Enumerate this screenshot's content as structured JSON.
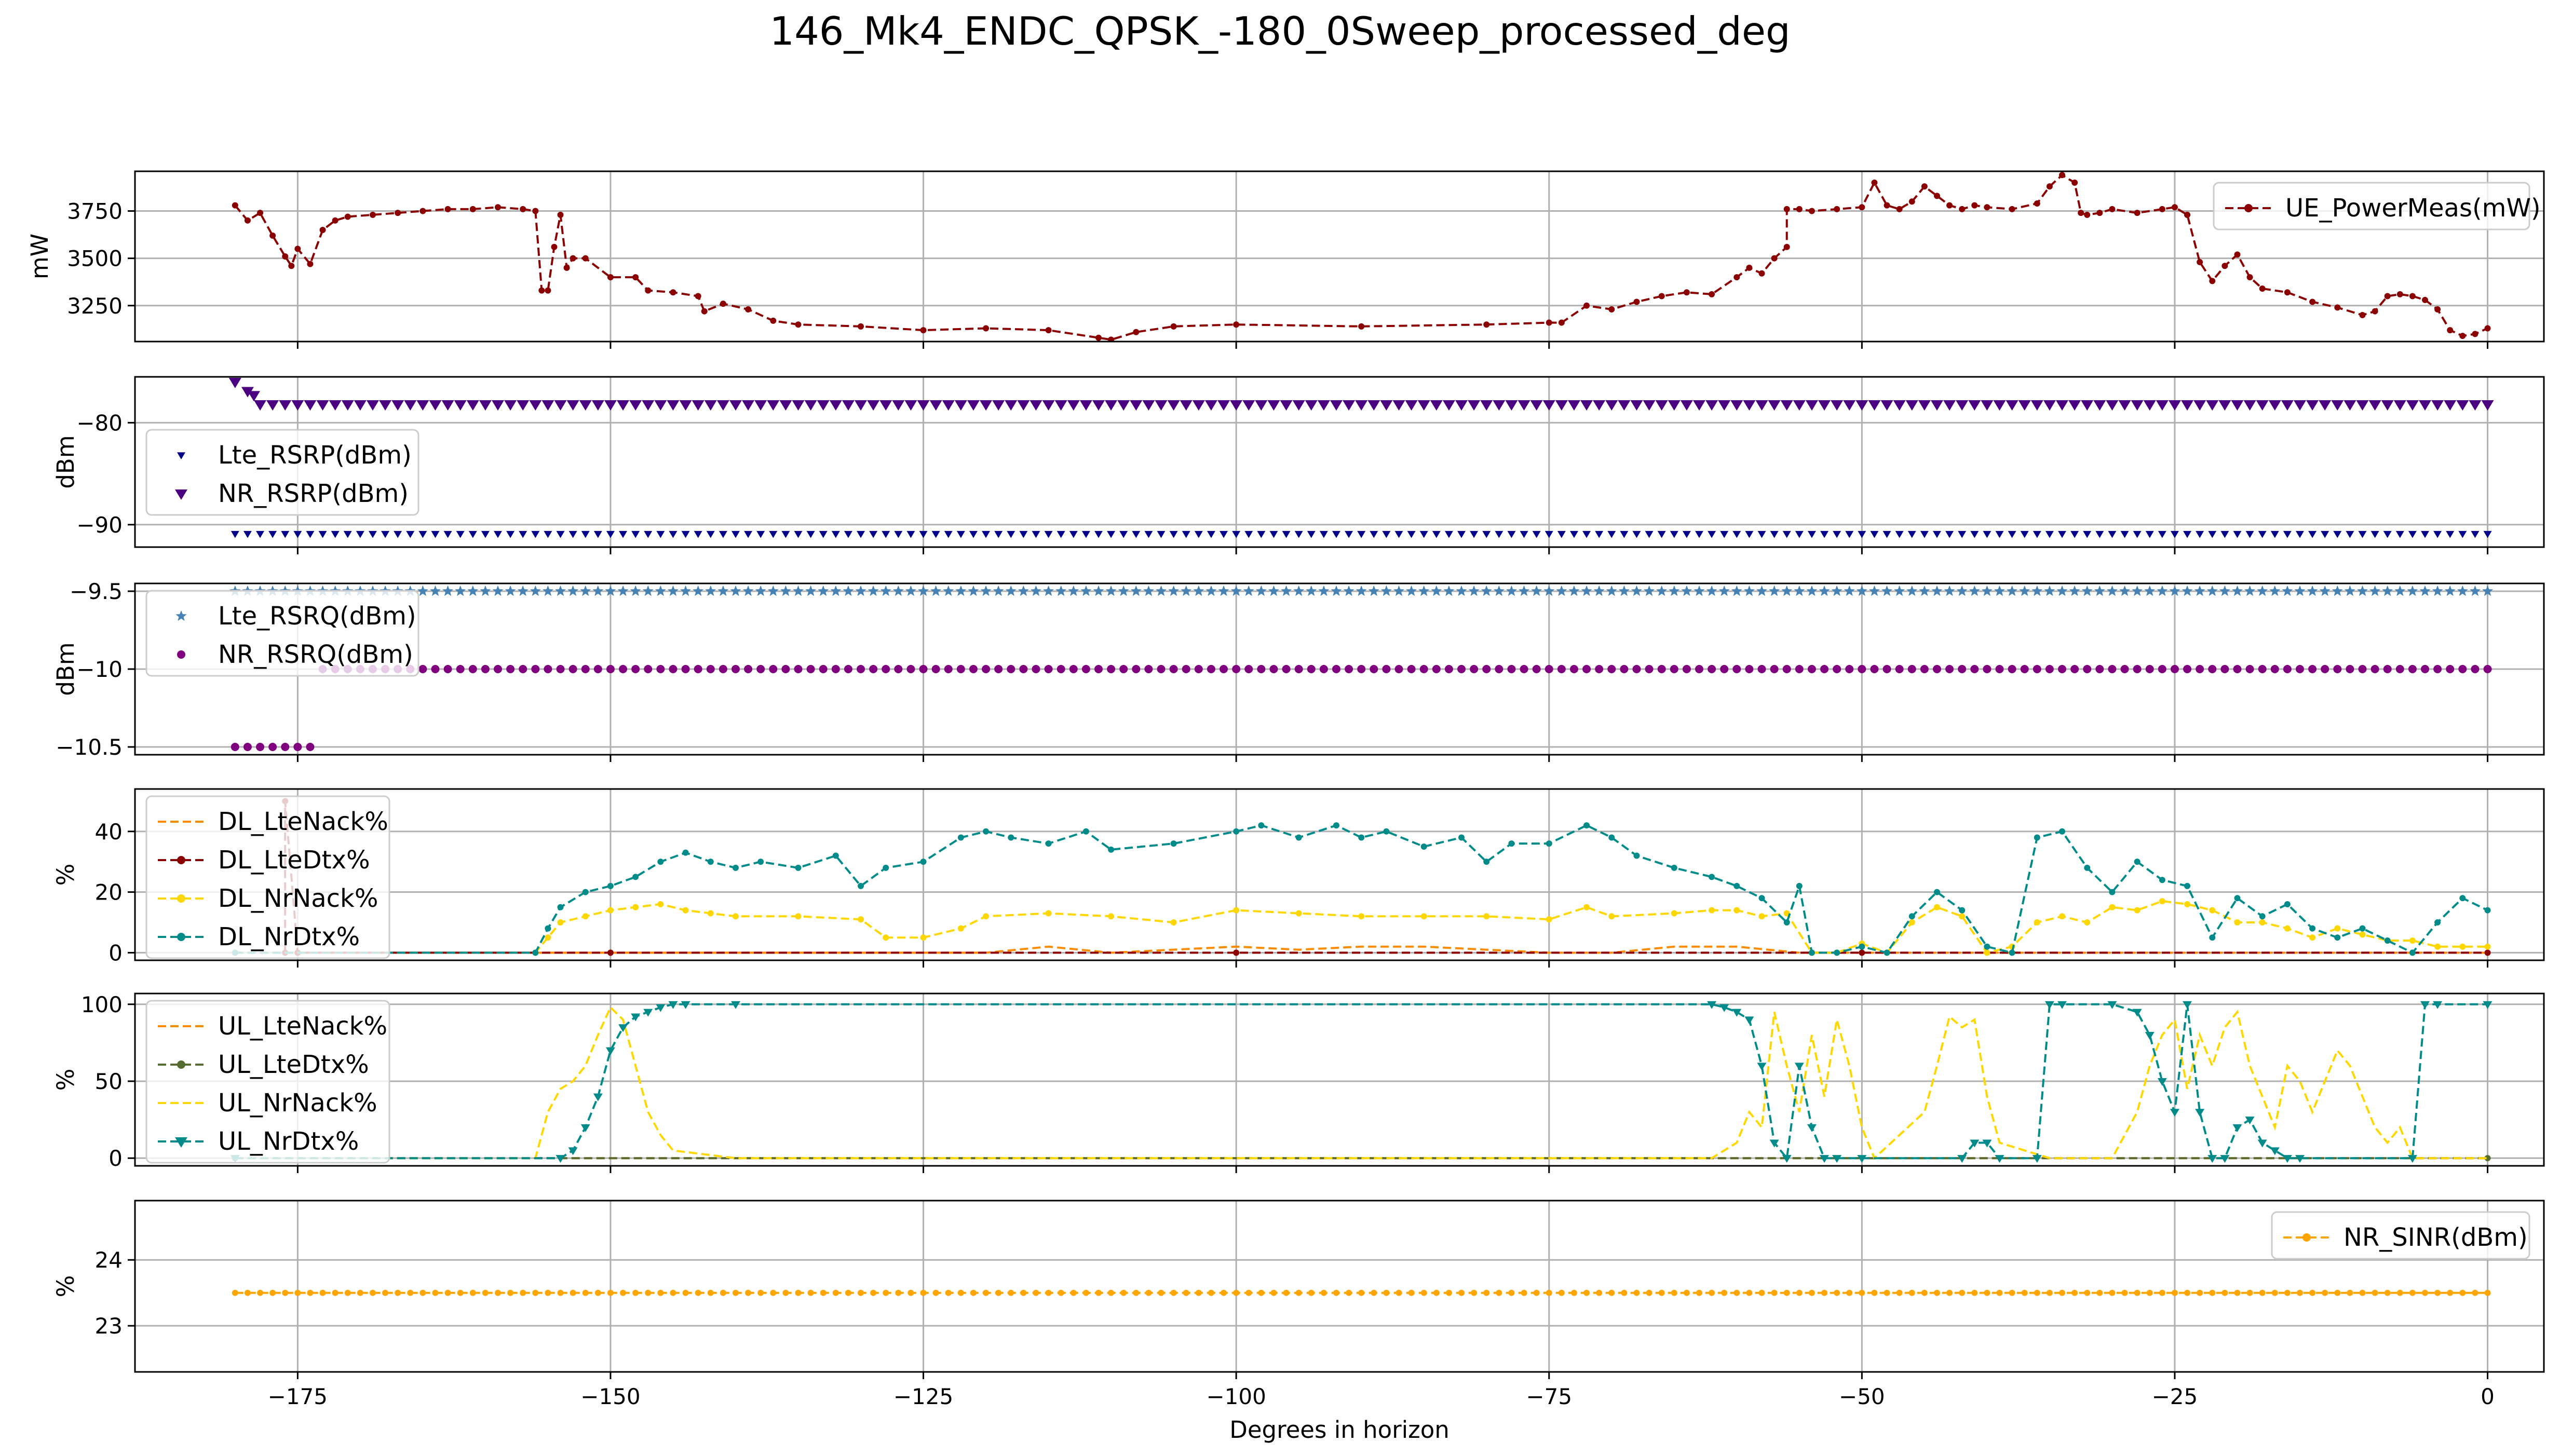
{
  "figure": {
    "title": "146_Mk4_ENDC_QPSK_-180_0Sweep_processed_deg",
    "xlabel": "Degrees in horizon",
    "xticks": [
      -175,
      -150,
      -125,
      -100,
      -75,
      -50,
      -25,
      0
    ],
    "xlim": [
      -188,
      4.5
    ]
  },
  "chart_data": [
    {
      "type": "line",
      "ylabel": "mW",
      "ylim": [
        3060,
        3960
      ],
      "yticks": [
        3250,
        3500,
        3750
      ],
      "legend_position": "top-right",
      "series": [
        {
          "name": "UE_PowerMeas(mW)",
          "color": "#8b0000",
          "dashed": true,
          "marker": "dot",
          "x": [
            -180,
            -179,
            -178,
            -177,
            -176,
            -175.5,
            -175,
            -174,
            -173,
            -172,
            -171,
            -169,
            -167,
            -165,
            -163,
            -161,
            -159,
            -157,
            -156,
            -155.5,
            -155,
            -154.5,
            -154,
            -153.5,
            -153,
            -152,
            -150,
            -148,
            -147,
            -145,
            -143,
            -142.5,
            -141,
            -139,
            -137,
            -135,
            -130,
            -125,
            -120,
            -115,
            -111,
            -110,
            -108,
            -105,
            -100,
            -90,
            -80,
            -75,
            -74,
            -72,
            -70,
            -68,
            -66,
            -64,
            -62,
            -60,
            -59,
            -58,
            -57,
            -56,
            -56,
            -55,
            -54,
            -52,
            -50,
            -49,
            -48,
            -47,
            -46,
            -45,
            -44,
            -43,
            -42,
            -41,
            -40,
            -38,
            -36,
            -35,
            -34,
            -33,
            -32.5,
            -32,
            -31,
            -30,
            -28,
            -26,
            -25,
            -24,
            -24,
            -23,
            -22,
            -21,
            -20,
            -19,
            -18,
            -16,
            -14,
            -12,
            -10,
            -9,
            -8,
            -7,
            -6,
            -5,
            -4,
            -3,
            -2,
            -1,
            0
          ],
          "y": [
            3780,
            3700,
            3740,
            3620,
            3510,
            3460,
            3550,
            3470,
            3650,
            3700,
            3720,
            3730,
            3740,
            3750,
            3760,
            3760,
            3770,
            3760,
            3750,
            3330,
            3330,
            3560,
            3730,
            3450,
            3500,
            3500,
            3400,
            3400,
            3330,
            3320,
            3300,
            3220,
            3260,
            3230,
            3170,
            3150,
            3140,
            3120,
            3130,
            3120,
            3080,
            3070,
            3110,
            3140,
            3150,
            3140,
            3150,
            3160,
            3160,
            3250,
            3230,
            3270,
            3300,
            3320,
            3310,
            3400,
            3450,
            3420,
            3500,
            3560,
            3760,
            3760,
            3750,
            3760,
            3770,
            3900,
            3780,
            3760,
            3800,
            3880,
            3830,
            3780,
            3760,
            3780,
            3770,
            3760,
            3790,
            3880,
            3940,
            3900,
            3740,
            3730,
            3740,
            3760,
            3740,
            3760,
            3770,
            3730,
            3730,
            3480,
            3380,
            3460,
            3520,
            3400,
            3340,
            3320,
            3270,
            3240,
            3200,
            3220,
            3300,
            3310,
            3300,
            3280,
            3230,
            3120,
            3090,
            3100,
            3130
          ]
        }
      ]
    },
    {
      "type": "scatter",
      "ylabel": "dBm",
      "ylim": [
        -92.2,
        -75.5
      ],
      "yticks": [
        -90,
        -80
      ],
      "legend_position": "center-left",
      "series": [
        {
          "name": "Lte_RSRP(dBm)",
          "color": "#00008b",
          "marker": "triangle-down-small",
          "x_range": [
            -180,
            0
          ],
          "step": 1,
          "value": -90.9
        },
        {
          "name": "NR_RSRP(dBm)",
          "color": "#4b0082",
          "marker": "triangle-down",
          "x_range": [
            -178,
            0
          ],
          "step": 1,
          "value": -78.2,
          "start_points": {
            "x": [
              -180,
              -179,
              -178.5
            ],
            "y": [
              -76,
              -76.9,
              -77.3
            ]
          }
        }
      ]
    },
    {
      "type": "scatter",
      "ylabel": "dBm",
      "ylim": [
        -10.55,
        -9.45
      ],
      "yticks": [
        -10.5,
        -10.0,
        -9.5
      ],
      "legend_position": "top-left",
      "series": [
        {
          "name": "Lte_RSRQ(dBm)",
          "color": "#4682b4",
          "marker": "star",
          "x_range": [
            -180,
            0
          ],
          "step": 1,
          "value": -9.5
        },
        {
          "name": "NR_RSRQ(dBm)",
          "color": "#800080",
          "marker": "dot",
          "segments": [
            {
              "x_range": [
                -180,
                -174
              ],
              "value": -10.5
            },
            {
              "x_range": [
                -173,
                0
              ],
              "value": -10.0
            }
          ]
        }
      ]
    },
    {
      "type": "line",
      "ylabel": "%",
      "ylim": [
        -2.5,
        54
      ],
      "yticks": [
        0,
        20,
        40
      ],
      "legend_position": "top-left",
      "series": [
        {
          "name": "DL_LteNack%",
          "color": "#ff8c00",
          "dashed": true,
          "x": [
            -180,
            -156,
            -120,
            -115,
            -110,
            -100,
            -95,
            -90,
            -85,
            -80,
            -75,
            -70,
            -65,
            -60,
            -55,
            -50,
            -40,
            -30,
            -20,
            -10,
            0
          ],
          "y": [
            0,
            0,
            0,
            2,
            0,
            2,
            1,
            2,
            2,
            1,
            0,
            0,
            2,
            2,
            0,
            0,
            0,
            0,
            0,
            0,
            0
          ]
        },
        {
          "name": "DL_LteDtx%",
          "color": "#8b0000",
          "dashed": true,
          "marker": "dot",
          "x": [
            -180,
            -176,
            -176,
            -175,
            -175,
            -150,
            -100,
            -50,
            0
          ],
          "y": [
            0,
            0,
            50,
            0,
            0,
            0,
            0,
            0,
            0
          ]
        },
        {
          "name": "DL_NrNack%",
          "color": "#ffd700",
          "dashed": true,
          "marker": "dot",
          "x": [
            -180,
            -156,
            -155,
            -154,
            -152,
            -150,
            -148,
            -146,
            -144,
            -142,
            -140,
            -135,
            -130,
            -128,
            -125,
            -122,
            -120,
            -115,
            -110,
            -105,
            -100,
            -95,
            -90,
            -85,
            -80,
            -75,
            -72,
            -70,
            -65,
            -62,
            -60,
            -58,
            -56,
            -54,
            -52,
            -50,
            -48,
            -46,
            -44,
            -42,
            -40,
            -38,
            -36,
            -34,
            -32,
            -30,
            -28,
            -26,
            -24,
            -22,
            -20,
            -18,
            -16,
            -14,
            -12,
            -10,
            -8,
            -6,
            -4,
            -2,
            0
          ],
          "y": [
            0,
            0,
            5,
            10,
            12,
            14,
            15,
            16,
            14,
            13,
            12,
            12,
            11,
            5,
            5,
            8,
            12,
            13,
            12,
            10,
            14,
            13,
            12,
            12,
            12,
            11,
            15,
            12,
            13,
            14,
            14,
            12,
            13,
            0,
            0,
            3,
            0,
            10,
            15,
            12,
            0,
            2,
            10,
            12,
            10,
            15,
            14,
            17,
            16,
            14,
            10,
            10,
            8,
            5,
            8,
            6,
            4,
            4,
            2,
            2,
            2
          ]
        },
        {
          "name": "DL_NrDtx%",
          "color": "#008b8b",
          "dashed": true,
          "marker": "dot",
          "x": [
            -180,
            -156,
            -155,
            -154,
            -152,
            -150,
            -148,
            -146,
            -144,
            -142,
            -140,
            -138,
            -135,
            -132,
            -130,
            -128,
            -125,
            -122,
            -120,
            -118,
            -115,
            -112,
            -110,
            -105,
            -100,
            -98,
            -95,
            -92,
            -90,
            -88,
            -85,
            -82,
            -80,
            -78,
            -75,
            -72,
            -70,
            -68,
            -65,
            -62,
            -60,
            -58,
            -56,
            -55,
            -54,
            -52,
            -50,
            -48,
            -46,
            -44,
            -42,
            -40,
            -38,
            -36,
            -34,
            -32,
            -30,
            -28,
            -26,
            -24,
            -22,
            -20,
            -18,
            -16,
            -14,
            -12,
            -10,
            -8,
            -6,
            -4,
            -2,
            0
          ],
          "y": [
            0,
            0,
            8,
            15,
            20,
            22,
            25,
            30,
            33,
            30,
            28,
            30,
            28,
            32,
            22,
            28,
            30,
            38,
            40,
            38,
            36,
            40,
            34,
            36,
            40,
            42,
            38,
            42,
            38,
            40,
            35,
            38,
            30,
            36,
            36,
            42,
            38,
            32,
            28,
            25,
            22,
            18,
            10,
            22,
            0,
            0,
            2,
            0,
            12,
            20,
            14,
            2,
            0,
            38,
            40,
            28,
            20,
            30,
            24,
            22,
            5,
            18,
            12,
            16,
            8,
            5,
            8,
            4,
            0,
            10,
            18,
            14
          ]
        }
      ]
    },
    {
      "type": "line",
      "ylabel": "%",
      "ylim": [
        -5,
        107
      ],
      "yticks": [
        0,
        50,
        100
      ],
      "legend_position": "top-left",
      "series": [
        {
          "name": "UL_LteNack%",
          "color": "#ff8c00",
          "dashed": true,
          "x": [
            -180,
            0
          ],
          "y": [
            0,
            0
          ]
        },
        {
          "name": "UL_LteDtx%",
          "color": "#556b2f",
          "dashed": true,
          "marker": "dot",
          "x": [
            -180,
            0
          ],
          "y": [
            0,
            0
          ]
        },
        {
          "name": "UL_NrNack%",
          "color": "#ffd700",
          "dashed": true,
          "x": [
            -180,
            -156,
            -155,
            -154,
            -153,
            -152,
            -151,
            -150,
            -149,
            -148,
            -147,
            -146,
            -145,
            -140,
            -62,
            -60,
            -59,
            -58,
            -57,
            -56,
            -55,
            -54,
            -53,
            -52,
            -51,
            -50,
            -49,
            -45,
            -44,
            -43,
            -42,
            -41,
            -40,
            -39,
            -35,
            -30,
            -28,
            -27,
            -26,
            -25,
            -24,
            -23,
            -22,
            -21,
            -20,
            -19,
            -18,
            -17,
            -16,
            -15,
            -14,
            -13,
            -12,
            -11,
            -10,
            -9,
            -8,
            -7,
            -6,
            -5,
            0
          ],
          "y": [
            0,
            0,
            30,
            45,
            50,
            60,
            80,
            98,
            90,
            60,
            30,
            15,
            5,
            0,
            0,
            10,
            30,
            20,
            95,
            60,
            30,
            80,
            40,
            90,
            60,
            20,
            0,
            30,
            60,
            92,
            85,
            90,
            40,
            10,
            0,
            0,
            30,
            60,
            80,
            90,
            45,
            80,
            60,
            85,
            95,
            60,
            40,
            20,
            60,
            50,
            30,
            50,
            70,
            60,
            40,
            20,
            10,
            20,
            0,
            0,
            0
          ]
        },
        {
          "name": "UL_NrDtx%",
          "color": "#008b8b",
          "dashed": true,
          "marker": "triangle-down",
          "x": [
            -180,
            -154,
            -153,
            -152,
            -151,
            -150,
            -149,
            -148,
            -147,
            -146,
            -145,
            -144,
            -140,
            -62,
            -61,
            -60,
            -59,
            -58,
            -57,
            -56,
            -55,
            -54,
            -53,
            -52,
            -50,
            -42,
            -41,
            -40,
            -39,
            -36,
            -35,
            -34,
            -30,
            -28,
            -27,
            -26,
            -25,
            -24,
            -23,
            -22,
            -21,
            -20,
            -19,
            -18,
            -17,
            -16,
            -15,
            -6,
            -5,
            -4,
            0
          ],
          "y": [
            0,
            0,
            5,
            20,
            40,
            70,
            85,
            92,
            95,
            98,
            100,
            100,
            100,
            100,
            98,
            95,
            90,
            60,
            10,
            0,
            60,
            20,
            0,
            0,
            0,
            0,
            10,
            10,
            0,
            0,
            100,
            100,
            100,
            95,
            80,
            50,
            30,
            100,
            30,
            0,
            0,
            20,
            25,
            10,
            5,
            0,
            0,
            0,
            100,
            100,
            100
          ]
        }
      ]
    },
    {
      "type": "line",
      "ylabel": "%",
      "ylim": [
        22.3,
        24.9
      ],
      "yticks": [
        23,
        24
      ],
      "legend_position": "top-right",
      "series": [
        {
          "name": "NR_SINR(dBm)",
          "color": "#ffa500",
          "dashed": true,
          "marker": "dot",
          "x_range": [
            -180,
            0
          ],
          "step": 1,
          "value": 23.5
        }
      ]
    }
  ]
}
